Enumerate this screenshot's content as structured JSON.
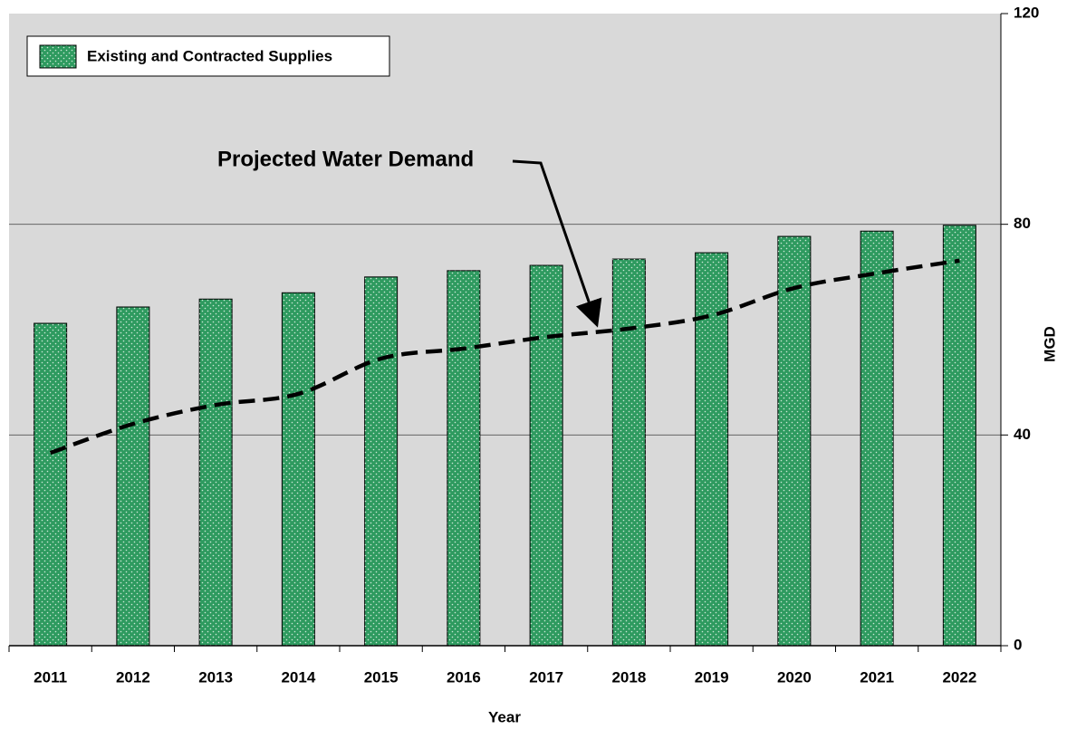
{
  "chart_data": {
    "type": "bar",
    "annotation": "Projected Water Demand",
    "xlabel": "Year",
    "ylabel": "MGD",
    "categories": [
      "2011",
      "2012",
      "2013",
      "2014",
      "2015",
      "2016",
      "2017",
      "2018",
      "2019",
      "2020",
      "2021",
      "2022"
    ],
    "series": [
      {
        "name": "Existing and Contracted Supplies",
        "color": "#2e9a5f",
        "values": [
          61.2,
          64.3,
          65.8,
          67,
          70,
          71.2,
          72.2,
          73.4,
          74.6,
          77.7,
          78.7,
          79.8
        ]
      },
      {
        "type": "line",
        "color": "#000000",
        "values": [
          36.6,
          42.1,
          45.7,
          47.8,
          54.5,
          56.4,
          58.6,
          60.2,
          62.7,
          67.9,
          70.7,
          73.1
        ]
      }
    ],
    "ylim": [
      0,
      120
    ],
    "yticks": [
      0,
      40,
      80,
      120
    ],
    "grid": true,
    "legend": "upper left"
  }
}
